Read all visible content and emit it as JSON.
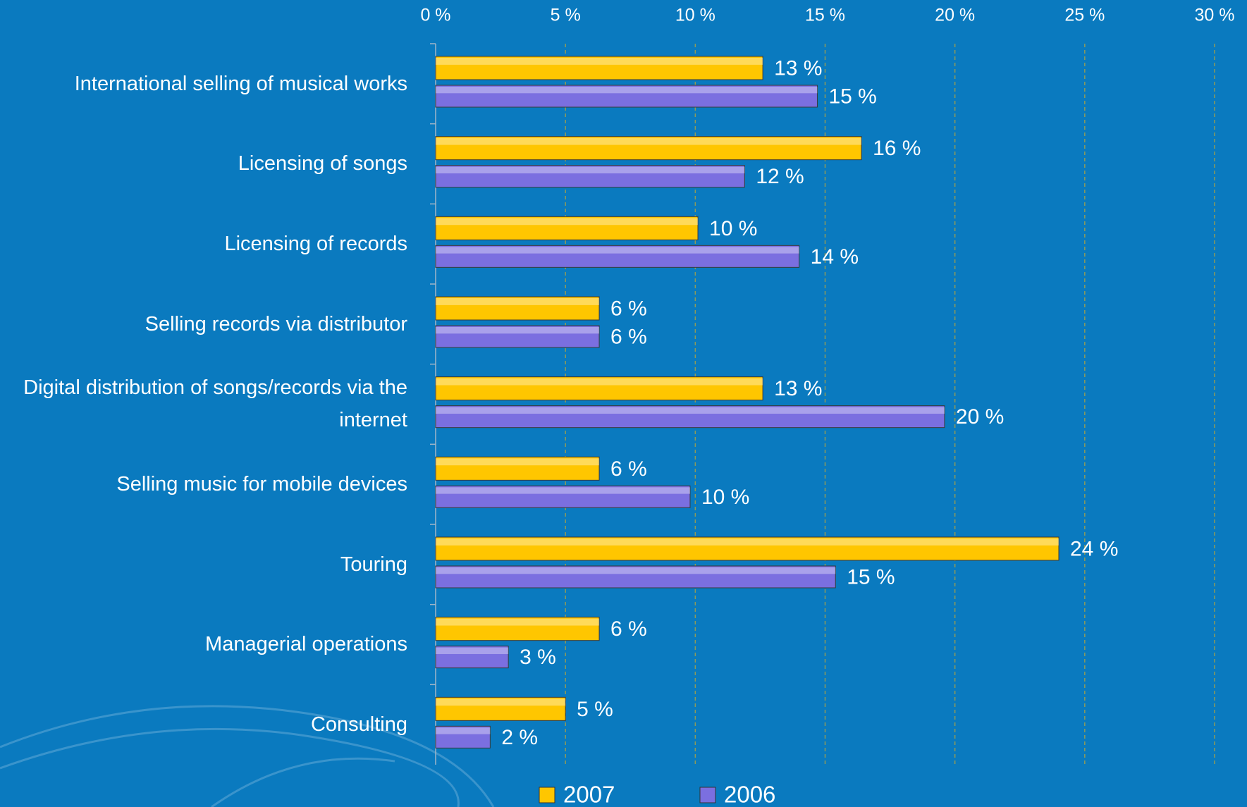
{
  "chart_data": {
    "type": "bar",
    "orientation": "horizontal",
    "categories": [
      "International selling of musical works",
      "Licensing of songs",
      "Licensing of records",
      "Selling records via distributor",
      "Digital distribution of songs/records via the internet",
      "Selling music for mobile devices",
      "Touring",
      "Managerial operations",
      "Consulting"
    ],
    "series": [
      {
        "name": "2007",
        "color": "#ffc600",
        "values": [
          12.6,
          16.4,
          10.1,
          6.3,
          12.6,
          6.3,
          24.0,
          6.3,
          5.0
        ],
        "value_labels": [
          "13 %",
          "16 %",
          "10 %",
          "6 %",
          "13 %",
          "6 %",
          "24 %",
          "6 %",
          "5 %"
        ]
      },
      {
        "name": "2006",
        "color": "#7b6fe0",
        "values": [
          14.7,
          11.9,
          14.0,
          6.3,
          19.6,
          9.8,
          15.4,
          2.8,
          2.1
        ],
        "value_labels": [
          "15 %",
          "12 %",
          "14 %",
          "6 %",
          "20 %",
          "10 %",
          "15 %",
          "3 %",
          "2 %"
        ]
      }
    ],
    "xlim": [
      0,
      30
    ],
    "xticks": [
      {
        "value": 0,
        "label": "0 %"
      },
      {
        "value": 5,
        "label": "5 %"
      },
      {
        "value": 10,
        "label": "10 %"
      },
      {
        "value": 15,
        "label": "15 %"
      },
      {
        "value": 20,
        "label": "20 %"
      },
      {
        "value": 25,
        "label": "25 %"
      },
      {
        "value": 30,
        "label": "30 %"
      }
    ],
    "grid": true,
    "legend": "bottom"
  }
}
